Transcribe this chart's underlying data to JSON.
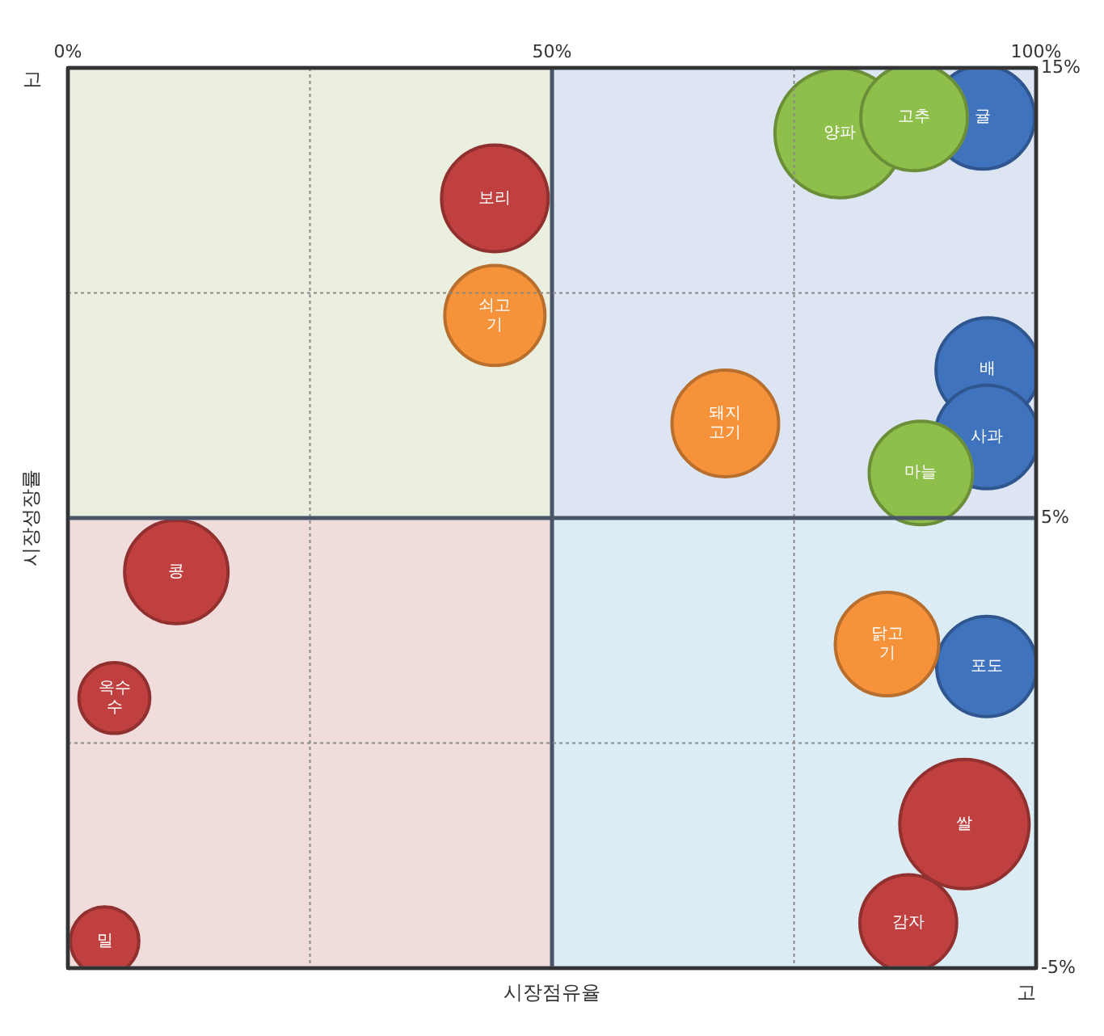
{
  "chart_data": {
    "type": "bubble",
    "xlabel": "시장점유율",
    "ylabel": "시장성장률",
    "xlim": [
      0,
      100
    ],
    "xticks": [
      {
        "value": 0,
        "label": "0%"
      },
      {
        "value": 25,
        "label": null
      },
      {
        "value": 50,
        "label": "50%"
      },
      {
        "value": 75,
        "label": null
      },
      {
        "value": 100,
        "label": "100%"
      }
    ],
    "ylim": [
      -5,
      15
    ],
    "yticks": [
      {
        "value": -5,
        "label": "-5%"
      },
      {
        "value": 0,
        "label": null
      },
      {
        "value": 5,
        "label": "5%"
      },
      {
        "value": 10,
        "label": null
      },
      {
        "value": 15,
        "label": "15%"
      }
    ],
    "grid": true,
    "legend": false,
    "series": [
      {
        "color": "#c0403f",
        "x": [
          44.1,
          11.2,
          4.8,
          3.8,
          92.6,
          86.8
        ],
        "values": [
          12.1,
          3.8,
          1.0,
          -4.4,
          -1.8,
          -4.0
        ],
        "sizes": [
          0.68,
          0.64,
          0.3,
          0.28,
          1,
          0.56
        ]
      },
      {
        "color": "#f5923a",
        "x": [
          44.1,
          67.9,
          84.6
        ],
        "values": [
          9.5,
          7.1,
          2.2
        ],
        "sizes": [
          0.6,
          0.68,
          0.64
        ]
      },
      {
        "color": "#8fbf4b",
        "x": [
          79.7,
          87.4,
          88.1
        ],
        "values": [
          13.55,
          13.9,
          6.0
        ],
        "sizes": [
          1,
          0.68,
          0.64
        ]
      },
      {
        "color": "#3f73bd",
        "x": [
          94.5,
          95.0,
          94.9,
          94.9
        ],
        "values": [
          13.9,
          8.3,
          6.8,
          1.7
        ],
        "sizes": [
          0.64,
          0.64,
          0.64,
          0.6
        ]
      }
    ],
    "annotations": [
      "고",
      "고",
      {
        "text": "보리",
        "x": 44.1,
        "y": 12.1
      },
      {
        "text": "콩",
        "x": 11.2,
        "y": 3.8
      },
      {
        "text": "옥수수",
        "x": 4.8,
        "y": 1.0
      },
      {
        "text": "밀",
        "x": 3.8,
        "y": -4.4
      },
      {
        "text": "쌀",
        "x": 92.6,
        "y": -1.8
      },
      {
        "text": "감자",
        "x": 86.8,
        "y": -4.0
      },
      {
        "text": "쇠고기",
        "x": 44.1,
        "y": 9.5
      },
      {
        "text": "돼지고기",
        "x": 67.9,
        "y": 7.1
      },
      {
        "text": "닭고기",
        "x": 84.6,
        "y": 2.2
      },
      {
        "text": "양파",
        "x": 79.7,
        "y": 13.55
      },
      {
        "text": "고추",
        "x": 87.4,
        "y": 13.9
      },
      {
        "text": "마늘",
        "x": 88.1,
        "y": 6.0
      },
      {
        "text": "귤",
        "x": 94.5,
        "y": 13.9
      },
      {
        "text": "배",
        "x": 95.0,
        "y": 8.3
      },
      {
        "text": "사과",
        "x": 94.9,
        "y": 6.8
      },
      {
        "text": "포도",
        "x": 94.9,
        "y": 1.7
      }
    ]
  }
}
